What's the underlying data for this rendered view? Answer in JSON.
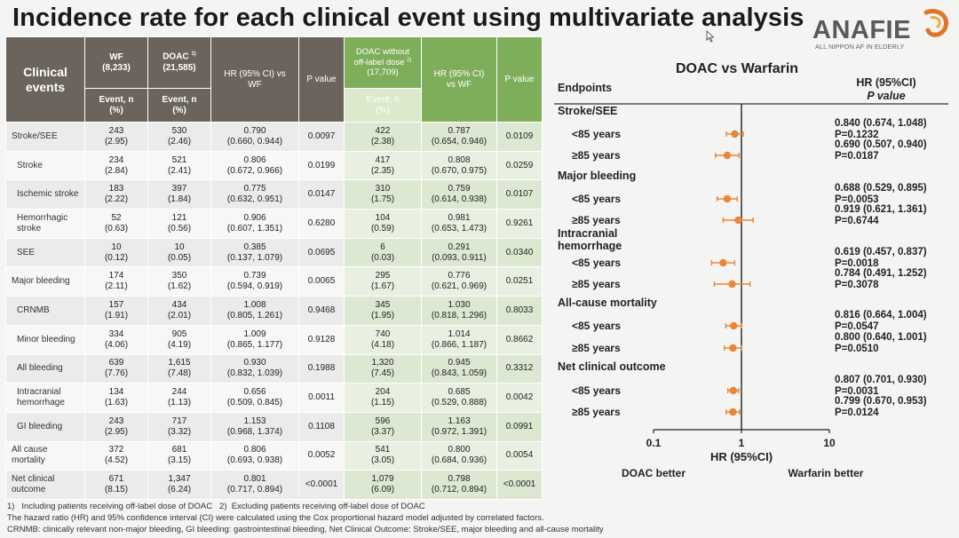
{
  "title": "Incidence rate for each clinical event using multivariate analysis",
  "logo": {
    "name": "ANAFIE",
    "tagline": "ALL NIPPON AF IN ELDERLY"
  },
  "table": {
    "header": {
      "clinical_events": "Clinical events",
      "wf_label": "WF",
      "wf_n": "(8,233)",
      "doac_label": "DOAC",
      "doac_sup": "1)",
      "doac_n": "(21,585)",
      "hr_label": "HR (95% CI) vs WF",
      "p_label": "P value",
      "doac2_label": "DOAC without off-label dose",
      "doac2_sup": "2)",
      "doac2_n": "(17,709)",
      "hr2_label": "HR (95% CI) vs WF",
      "p2_label": "P value",
      "event_n": "Event, n (%)"
    },
    "rows": [
      {
        "event": "Stroke/SEE",
        "wf_n": "243",
        "wf_pct": "(2.95)",
        "doac_n": "530",
        "doac_pct": "(2.46)",
        "hr": "0.790",
        "ci": "(0.660, 0.944)",
        "p": "0.0097",
        "doac2_n": "422",
        "doac2_pct": "(2.38)",
        "hr2": "0.787",
        "ci2": "(0.654, 0.946)",
        "p2": "0.0109"
      },
      {
        "event": "Stroke",
        "wf_n": "234",
        "wf_pct": "(2.84)",
        "doac_n": "521",
        "doac_pct": "(2.41)",
        "hr": "0.806",
        "ci": "(0.672, 0.966)",
        "p": "0.0199",
        "doac2_n": "417",
        "doac2_pct": "(2.35)",
        "hr2": "0.808",
        "ci2": "(0.670, 0.975)",
        "p2": "0.0259"
      },
      {
        "event": "Ischemic stroke",
        "wf_n": "183",
        "wf_pct": "(2.22)",
        "doac_n": "397",
        "doac_pct": "(1.84)",
        "hr": "0.775",
        "ci": "(0.632, 0.951)",
        "p": "0.0147",
        "doac2_n": "310",
        "doac2_pct": "(1.75)",
        "hr2": "0.759",
        "ci2": "(0.614, 0.938)",
        "p2": "0.0107"
      },
      {
        "event": "Hemorrhagic stroke",
        "wf_n": "52",
        "wf_pct": "(0.63)",
        "doac_n": "121",
        "doac_pct": "(0.56)",
        "hr": "0.906",
        "ci": "(0.607, 1.351)",
        "p": "0.6280",
        "doac2_n": "104",
        "doac2_pct": "(0.59)",
        "hr2": "0.981",
        "ci2": "(0.653, 1.473)",
        "p2": "0.9261"
      },
      {
        "event": "SEE",
        "wf_n": "10",
        "wf_pct": "(0.12)",
        "doac_n": "10",
        "doac_pct": "(0.05)",
        "hr": "0.385",
        "ci": "(0.137, 1.079)",
        "p": "0.0695",
        "doac2_n": "6",
        "doac2_pct": "(0.03)",
        "hr2": "0.291",
        "ci2": "(0.093, 0.911)",
        "p2": "0.0340"
      },
      {
        "event": "Major bleeding",
        "wf_n": "174",
        "wf_pct": "(2.11)",
        "doac_n": "350",
        "doac_pct": "(1.62)",
        "hr": "0.739",
        "ci": "(0.594, 0.919)",
        "p": "0.0065",
        "doac2_n": "295",
        "doac2_pct": "(1.67)",
        "hr2": "0.776",
        "ci2": "(0.621, 0.969)",
        "p2": "0.0251"
      },
      {
        "event": "CRNMB",
        "wf_n": "157",
        "wf_pct": "(1.91)",
        "doac_n": "434",
        "doac_pct": "(2.01)",
        "hr": "1.008",
        "ci": "(0.805, 1.261)",
        "p": "0.9468",
        "doac2_n": "345",
        "doac2_pct": "(1.95)",
        "hr2": "1.030",
        "ci2": "(0.818, 1.296)",
        "p2": "0.8033"
      },
      {
        "event": "Minor bleeding",
        "wf_n": "334",
        "wf_pct": "(4.06)",
        "doac_n": "905",
        "doac_pct": "(4.19)",
        "hr": "1.009",
        "ci": "(0.865, 1.177)",
        "p": "0.9128",
        "doac2_n": "740",
        "doac2_pct": "(4.18)",
        "hr2": "1.014",
        "ci2": "(0.866, 1.187)",
        "p2": "0.8662"
      },
      {
        "event": "All bleeding",
        "wf_n": "639",
        "wf_pct": "(7.76)",
        "doac_n": "1,615",
        "doac_pct": "(7.48)",
        "hr": "0.930",
        "ci": "(0.832, 1.039)",
        "p": "0.1988",
        "doac2_n": "1,320",
        "doac2_pct": "(7.45)",
        "hr2": "0.945",
        "ci2": "(0.843, 1.059)",
        "p2": "0.3312"
      },
      {
        "event": "Intracranial hemorrhage",
        "wf_n": "134",
        "wf_pct": "(1.63)",
        "doac_n": "244",
        "doac_pct": "(1.13)",
        "hr": "0.656",
        "ci": "(0.509, 0.845)",
        "p": "0.0011",
        "doac2_n": "204",
        "doac2_pct": "(1.15)",
        "hr2": "0.685",
        "ci2": "(0.529, 0.888)",
        "p2": "0.0042"
      },
      {
        "event": "GI bleeding",
        "wf_n": "243",
        "wf_pct": "(2.95)",
        "doac_n": "717",
        "doac_pct": "(3.32)",
        "hr": "1.153",
        "ci": "(0.968, 1.374)",
        "p": "0.1108",
        "doac2_n": "596",
        "doac2_pct": "(3.37)",
        "hr2": "1.163",
        "ci2": "(0.972, 1.391)",
        "p2": "0.0991"
      },
      {
        "event": "All cause mortality",
        "wf_n": "372",
        "wf_pct": "(4.52)",
        "doac_n": "681",
        "doac_pct": "(3.15)",
        "hr": "0.806",
        "ci": "(0.693, 0.938)",
        "p": "0.0052",
        "doac2_n": "541",
        "doac2_pct": "(3.05)",
        "hr2": "0.800",
        "ci2": "(0.684, 0.936)",
        "p2": "0.0054"
      },
      {
        "event": "Net clinical outcome",
        "wf_n": "671",
        "wf_pct": "(8.15)",
        "doac_n": "1,347",
        "doac_pct": "(6.24)",
        "hr": "0.801",
        "ci": "(0.717, 0.894)",
        "p": "<0.0001",
        "doac2_n": "1,079",
        "doac2_pct": "(6.09)",
        "hr2": "0.798",
        "ci2": "(0.712, 0.894)",
        "p2": "<0.0001"
      }
    ]
  },
  "footnotes": [
    "1)   Including patients receiving off-label dose of DOAC   2)  Excluding patients receiving off-label dose of DOAC",
    "The hazard ratio (HR) and 95% confidence interval (CI) were calculated using the Cox proportional hazard model adjusted by correlated factors.",
    "CRNMB: clinically relevant non-major bleeding, GI bleeding: gastrointestinal bleeding, Net Clinical Outcome: Stroke/SEE, major bleeding and all-cause mortality"
  ],
  "forest": {
    "title": "DOAC vs Warfarin",
    "endpoints_label": "Endpoints",
    "hr_header": "HR (95%CI)",
    "p_header": "P value",
    "xlabel": "HR (95%CI)",
    "left_note": "DOAC better",
    "right_note": "Warfarin better",
    "tick_labels": [
      "0.1",
      "1",
      "10"
    ]
  },
  "chart_data": {
    "type": "scatter",
    "title": "DOAC vs Warfarin",
    "xlabel": "HR (95%CI)",
    "xscale": "log",
    "xlim": [
      0.1,
      10
    ],
    "xticks": [
      0.1,
      1,
      10
    ],
    "reference_line": 1,
    "marker_color": "#e8873a",
    "groups": [
      {
        "label": "Stroke/SEE",
        "rows": [
          {
            "label": "<85 years",
            "hr": 0.84,
            "lo": 0.674,
            "hi": 1.048,
            "hr_text": "0.840 (0.674, 1.048)",
            "p_text": "P=0.1232"
          },
          {
            "label": "≥85 years",
            "hr": 0.69,
            "lo": 0.507,
            "hi": 0.94,
            "hr_text": "0.690 (0.507, 0.940)",
            "p_text": "P=0.0187"
          }
        ]
      },
      {
        "label": "Major bleeding",
        "rows": [
          {
            "label": "<85 years",
            "hr": 0.688,
            "lo": 0.529,
            "hi": 0.895,
            "hr_text": "0.688 (0.529, 0.895)",
            "p_text": "P=0.0053"
          },
          {
            "label": "≥85 years",
            "hr": 0.919,
            "lo": 0.621,
            "hi": 1.361,
            "hr_text": "0.919 (0.621, 1.361)",
            "p_text": "P=0.6744"
          }
        ]
      },
      {
        "label": "Intracranial hemorrhage",
        "rows": [
          {
            "label": "<85 years",
            "hr": 0.619,
            "lo": 0.457,
            "hi": 0.837,
            "hr_text": "0.619 (0.457, 0.837)",
            "p_text": "P=0.0018"
          },
          {
            "label": "≥85 years",
            "hr": 0.784,
            "lo": 0.491,
            "hi": 1.252,
            "hr_text": "0.784 (0.491, 1.252)",
            "p_text": "P=0.3078"
          }
        ]
      },
      {
        "label": "All-cause mortality",
        "rows": [
          {
            "label": "<85 years",
            "hr": 0.816,
            "lo": 0.664,
            "hi": 1.004,
            "hr_text": "0.816 (0.664, 1.004)",
            "p_text": "P=0.0547"
          },
          {
            "label": "≥85 years",
            "hr": 0.8,
            "lo": 0.64,
            "hi": 1.001,
            "hr_text": "0.800 (0.640, 1.001)",
            "p_text": "P=0.0510"
          }
        ]
      },
      {
        "label": "Net clinical outcome",
        "rows": [
          {
            "label": "<85 years",
            "hr": 0.807,
            "lo": 0.701,
            "hi": 0.93,
            "hr_text": "0.807 (0.701, 0.930)",
            "p_text": "P=0.0031"
          },
          {
            "label": "≥85 years",
            "hr": 0.799,
            "lo": 0.67,
            "hi": 0.953,
            "hr_text": "0.799 (0.670, 0.953)",
            "p_text": "P=0.0124"
          }
        ]
      }
    ]
  }
}
